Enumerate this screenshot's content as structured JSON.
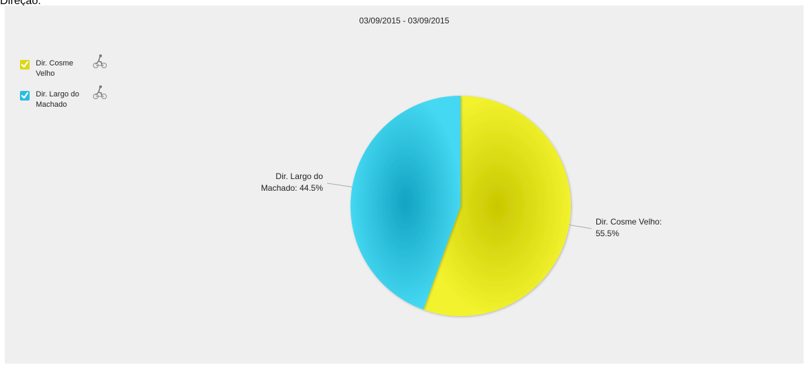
{
  "page": {
    "heading": "Direção:"
  },
  "legend": {
    "items": [
      {
        "label": "Dir. Cosme Velho",
        "color": "#d9d91a",
        "icon": "bicycle-icon"
      },
      {
        "label": "Dir. Largo do Machado",
        "color": "#2bbde0",
        "icon": "bicycle-icon"
      }
    ]
  },
  "chart_data": {
    "type": "pie",
    "title": "03/09/2015 - 03/09/2015",
    "slices": [
      {
        "name": "Dir. Cosme Velho",
        "value": 55.5,
        "label_lines": [
          "Dir. Cosme Velho:",
          "55.5%"
        ],
        "color": "#e8e81e"
      },
      {
        "name": "Dir. Largo do Machado",
        "value": 44.5,
        "label_lines": [
          "Dir. Largo do",
          "Machado: 44.5%"
        ],
        "color": "#3dd3ee"
      }
    ],
    "legend_position": "top-left"
  }
}
